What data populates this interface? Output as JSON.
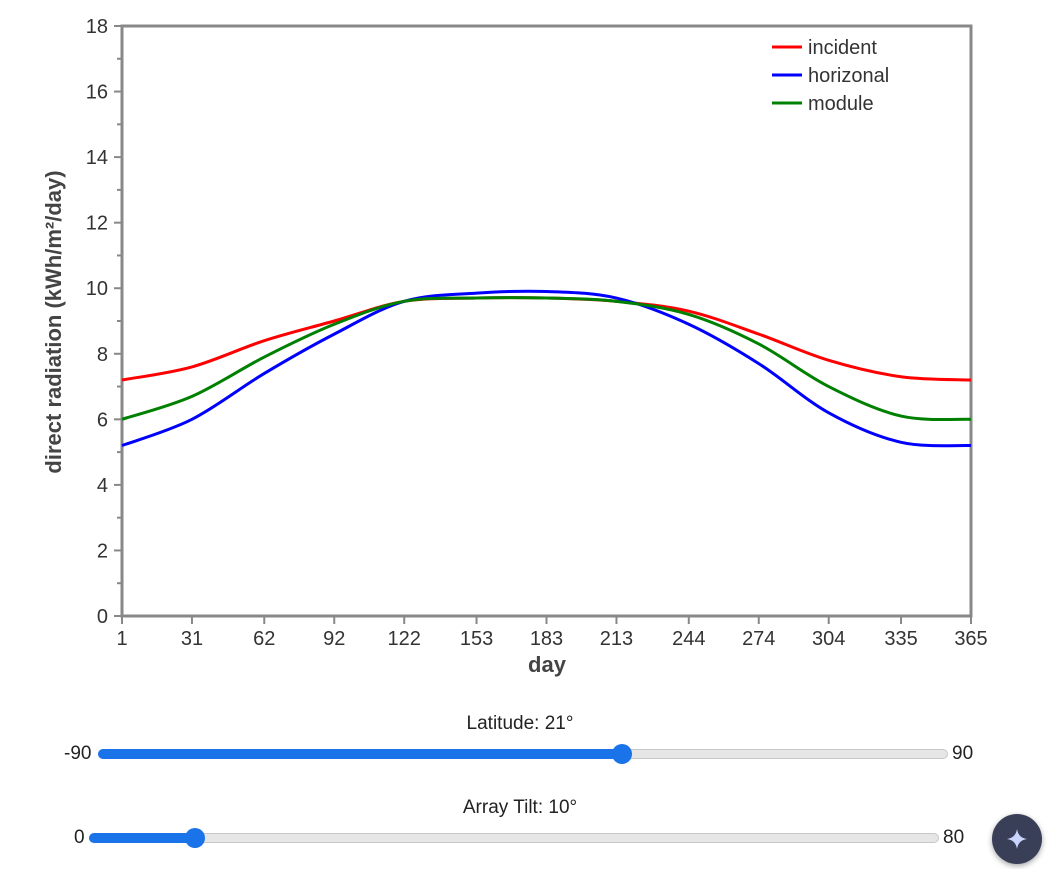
{
  "chart_data": {
    "type": "line",
    "xlabel": "day",
    "ylabel": "direct radiation (kWh/m²/day)",
    "xlim": [
      1,
      365
    ],
    "ylim": [
      0,
      18
    ],
    "x_ticks": [
      "1",
      "31",
      "62",
      "92",
      "122",
      "153",
      "183",
      "213",
      "244",
      "274",
      "304",
      "335",
      "365"
    ],
    "y_ticks": [
      "0",
      "2",
      "4",
      "6",
      "8",
      "10",
      "12",
      "14",
      "16",
      "18"
    ],
    "legend_position": "top-right",
    "grid": false,
    "x": [
      1,
      31,
      62,
      92,
      122,
      153,
      183,
      213,
      244,
      274,
      304,
      335,
      365
    ],
    "series": [
      {
        "name": "incident",
        "color": "#ff0000",
        "values": [
          7.2,
          7.6,
          8.4,
          9.0,
          9.6,
          9.7,
          9.7,
          9.6,
          9.3,
          8.6,
          7.8,
          7.3,
          7.2
        ]
      },
      {
        "name": "horizonal",
        "color": "#0000ff",
        "values": [
          5.2,
          6.0,
          7.4,
          8.6,
          9.6,
          9.85,
          9.9,
          9.7,
          8.9,
          7.7,
          6.2,
          5.3,
          5.2
        ]
      },
      {
        "name": "module",
        "color": "#008000",
        "values": [
          6.0,
          6.7,
          7.9,
          8.9,
          9.6,
          9.7,
          9.7,
          9.6,
          9.2,
          8.3,
          7.0,
          6.1,
          6.0
        ]
      }
    ]
  },
  "sliders": {
    "latitude": {
      "label": "Latitude: 21°",
      "min": "-90",
      "max": "90",
      "value": 21,
      "range_min": -90,
      "range_max": 90
    },
    "tilt": {
      "label": "Array Tilt: 10°",
      "min": "0",
      "max": "80",
      "value": 10,
      "range_min": 0,
      "range_max": 80
    }
  },
  "fab": {
    "icon": "sparkle-icon",
    "color": "#3a3f58"
  }
}
